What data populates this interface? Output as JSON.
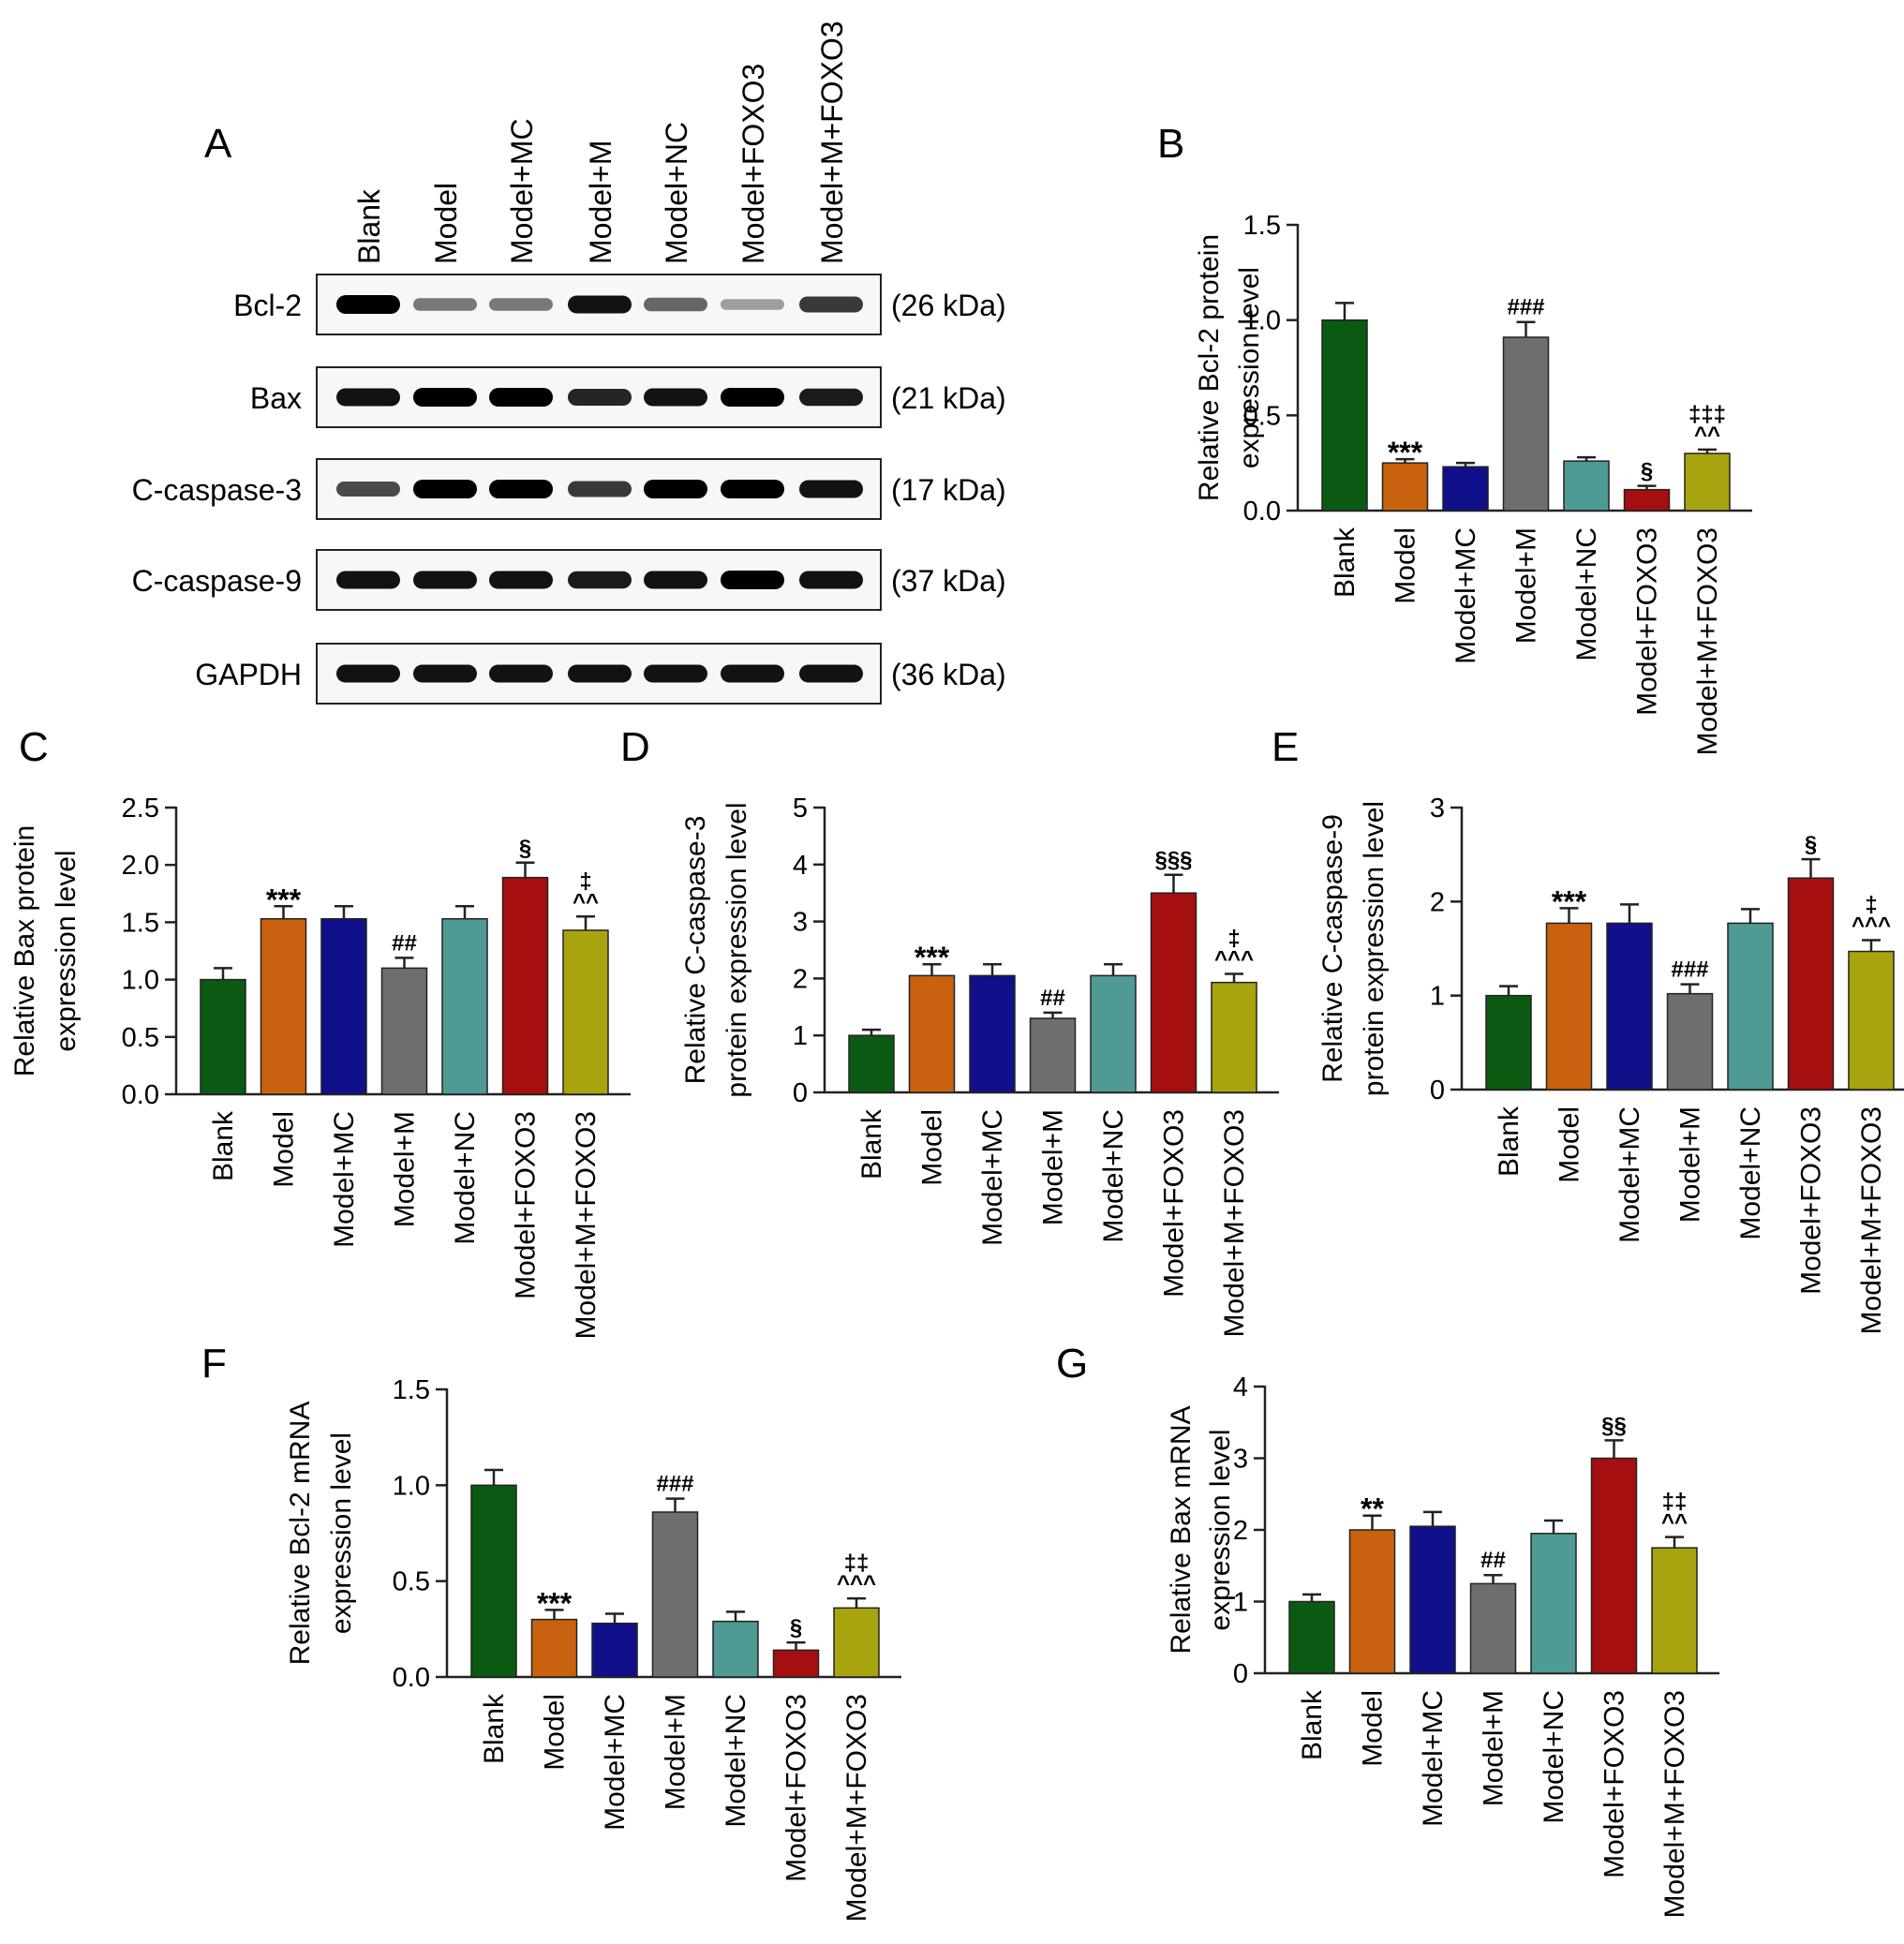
{
  "panel_letters": [
    "A",
    "B",
    "C",
    "D",
    "E",
    "F",
    "G"
  ],
  "blot": {
    "letter": "A",
    "lanes": [
      "Blank",
      "Model",
      "Model+MC",
      "Model+M",
      "Model+NC",
      "Model+FOXO3",
      "Model+M+FOXO3"
    ],
    "rows": [
      {
        "protein": "Bcl-2",
        "size": "(26 kDa)",
        "intensity": [
          1.0,
          0.35,
          0.35,
          0.9,
          0.45,
          0.15,
          0.7
        ]
      },
      {
        "protein": "Bax",
        "size": "(21 kDa)",
        "intensity": [
          0.9,
          1.0,
          1.0,
          0.8,
          0.9,
          1.0,
          0.85
        ]
      },
      {
        "protein": "C-caspase-3",
        "size": "(17 kDa)",
        "intensity": [
          0.6,
          1.0,
          1.0,
          0.7,
          1.0,
          1.0,
          0.9
        ]
      },
      {
        "protein": "C-caspase-9",
        "size": "(37 kDa)",
        "intensity": [
          0.9,
          0.9,
          0.9,
          0.85,
          0.9,
          1.0,
          0.9
        ]
      },
      {
        "protein": "GAPDH",
        "size": "(36 kDa)",
        "intensity": [
          0.9,
          0.9,
          0.9,
          0.9,
          0.9,
          0.9,
          0.9
        ]
      }
    ]
  },
  "colors": [
    "#0b5a12",
    "#c8620f",
    "#10108a",
    "#6e6e6e",
    "#4f9a94",
    "#a50f0f",
    "#a8a40f"
  ],
  "chart_data": [
    {
      "letter": "B",
      "type": "bar",
      "ylabel": [
        "Relative Bcl-2 protein",
        "expression level"
      ],
      "categories": [
        "Blank",
        "Model",
        "Model+MC",
        "Model+M",
        "Model+NC",
        "Model+FOXO3",
        "Model+M+FOXO3"
      ],
      "values": [
        1.0,
        0.25,
        0.23,
        0.91,
        0.26,
        0.11,
        0.3
      ],
      "errors": [
        0.09,
        0.02,
        0.02,
        0.08,
        0.02,
        0.02,
        0.02
      ],
      "annotations": [
        "",
        "***",
        "",
        "###",
        "",
        "§",
        "‡‡‡\n^^"
      ],
      "ylim": [
        0,
        1.5
      ],
      "yticks": [
        "0.0",
        "0.5",
        "1.0",
        "1.5"
      ]
    },
    {
      "letter": "C",
      "type": "bar",
      "ylabel": [
        "Relative Bax protein",
        "expression level"
      ],
      "categories": [
        "Blank",
        "Model",
        "Model+MC",
        "Model+M",
        "Model+NC",
        "Model+FOXO3",
        "Model+M+FOXO3"
      ],
      "values": [
        1.0,
        1.53,
        1.53,
        1.1,
        1.53,
        1.89,
        1.43
      ],
      "errors": [
        0.1,
        0.11,
        0.11,
        0.09,
        0.11,
        0.13,
        0.12
      ],
      "annotations": [
        "",
        "***",
        "",
        "##",
        "",
        "§",
        "‡\n^^"
      ],
      "ylim": [
        0,
        2.5
      ],
      "yticks": [
        "0.0",
        "0.5",
        "1.0",
        "1.5",
        "2.0",
        "2.5"
      ]
    },
    {
      "letter": "D",
      "type": "bar",
      "ylabel": [
        "Relative C-caspase-3",
        "protein expression level"
      ],
      "categories": [
        "Blank",
        "Model",
        "Model+MC",
        "Model+M",
        "Model+NC",
        "Model+FOXO3",
        "Model+M+FOXO3"
      ],
      "values": [
        1.0,
        2.05,
        2.05,
        1.3,
        2.05,
        3.5,
        1.93
      ],
      "errors": [
        0.1,
        0.2,
        0.2,
        0.1,
        0.2,
        0.32,
        0.15
      ],
      "annotations": [
        "",
        "***",
        "",
        "##",
        "",
        "§§§",
        "‡\n^^^"
      ],
      "ylim": [
        0,
        5
      ],
      "yticks": [
        "0",
        "1",
        "2",
        "3",
        "4",
        "5"
      ]
    },
    {
      "letter": "E",
      "type": "bar",
      "ylabel": [
        "Relative C-caspase-9",
        "protein expression level"
      ],
      "categories": [
        "Blank",
        "Model",
        "Model+MC",
        "Model+M",
        "Model+NC",
        "Model+FOXO3",
        "Model+M+FOXO3"
      ],
      "values": [
        1.0,
        1.77,
        1.77,
        1.02,
        1.77,
        2.25,
        1.47
      ],
      "errors": [
        0.1,
        0.16,
        0.2,
        0.1,
        0.15,
        0.2,
        0.12
      ],
      "annotations": [
        "",
        "***",
        "",
        "###",
        "",
        "§",
        "‡\n^^^"
      ],
      "ylim": [
        0,
        3
      ],
      "yticks": [
        "0",
        "1",
        "2",
        "3"
      ]
    },
    {
      "letter": "F",
      "type": "bar",
      "ylabel": [
        "Relative Bcl-2 mRNA",
        "expression level"
      ],
      "categories": [
        "Blank",
        "Model",
        "Model+MC",
        "Model+M",
        "Model+NC",
        "Model+FOXO3",
        "Model+M+FOXO3"
      ],
      "values": [
        1.0,
        0.3,
        0.28,
        0.86,
        0.29,
        0.14,
        0.36
      ],
      "errors": [
        0.08,
        0.05,
        0.05,
        0.07,
        0.05,
        0.04,
        0.05
      ],
      "annotations": [
        "",
        "***",
        "",
        "###",
        "",
        "§",
        "‡‡\n^^^"
      ],
      "ylim": [
        0,
        1.5
      ],
      "yticks": [
        "0.0",
        "0.5",
        "1.0",
        "1.5"
      ]
    },
    {
      "letter": "G",
      "type": "bar",
      "ylabel": [
        "Relative Bax mRNA",
        "expression level"
      ],
      "categories": [
        "Blank",
        "Model",
        "Model+MC",
        "Model+M",
        "Model+NC",
        "Model+FOXO3",
        "Model+M+FOXO3"
      ],
      "values": [
        1.0,
        2.0,
        2.05,
        1.25,
        1.95,
        3.0,
        1.75
      ],
      "errors": [
        0.1,
        0.2,
        0.2,
        0.12,
        0.18,
        0.25,
        0.15
      ],
      "annotations": [
        "",
        "**",
        "",
        "##",
        "",
        "§§",
        "‡‡\n^^"
      ],
      "ylim": [
        0,
        4
      ],
      "yticks": [
        "0",
        "1",
        "2",
        "3",
        "4"
      ]
    }
  ]
}
